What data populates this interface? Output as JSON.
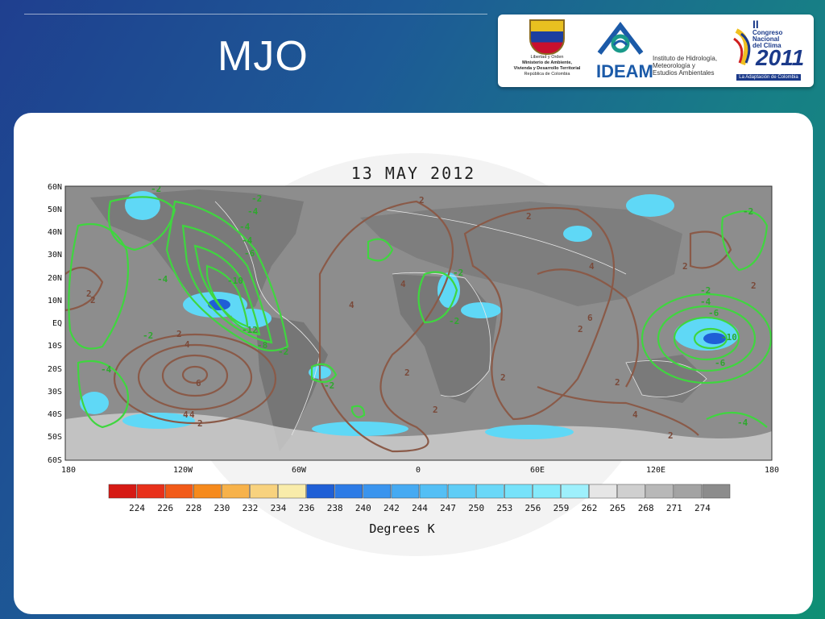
{
  "slide": {
    "title": "MJO"
  },
  "logos": {
    "ministry": {
      "lines": [
        "Libertad y Orden",
        "Ministerio de Ambiente,",
        "Vivienda y Desarrollo Territorial",
        "República de Colombia"
      ]
    },
    "ideam": {
      "acronym": "IDEAM",
      "lines": [
        "Instituto de Hidrología,",
        "Meteorología y",
        "Estudios Ambientales"
      ]
    },
    "congreso": {
      "roman": "II",
      "lines": [
        "Congreso",
        "Nacional",
        "del Clima"
      ],
      "year": "2011",
      "tagline": "La Adaptación de Colombia"
    }
  },
  "map": {
    "date_title": "13 MAY 2012",
    "lat_labels": [
      "60N",
      "50N",
      "40N",
      "30N",
      "20N",
      "10N",
      "EQ",
      "10S",
      "20S",
      "30S",
      "40S",
      "50S",
      "60S"
    ],
    "lon_labels": [
      "180",
      "120W",
      "60W",
      "0",
      "60E",
      "120E",
      "180"
    ],
    "colorbar_values": [
      "224",
      "226",
      "228",
      "230",
      "232",
      "234",
      "236",
      "238",
      "240",
      "242",
      "244",
      "247",
      "250",
      "253",
      "256",
      "259",
      "262",
      "265",
      "268",
      "271",
      "274"
    ],
    "colorbar_colors": [
      "#d61a14",
      "#e8301a",
      "#f25a18",
      "#f68a1c",
      "#f7b24a",
      "#f8d27e",
      "#f9ecaa",
      "#1f5fd6",
      "#2c7be6",
      "#3a94ee",
      "#46aaf2",
      "#54bff5",
      "#5fcdf6",
      "#6ad8f8",
      "#76e2fa",
      "#84eafb",
      "#9ef0fc",
      "#e6e6e6",
      "#cfcfcf",
      "#b8b8b8",
      "#a3a3a3",
      "#8c8c8c"
    ],
    "units_label": "Degrees K",
    "contour_labels": {
      "green": [
        "-2",
        "-4",
        "-4",
        "-10",
        "-12",
        "-4",
        "-6",
        "-8",
        "-2",
        "-2",
        "-2",
        "-2",
        "-4",
        "-2",
        "-2",
        "-4",
        "-6",
        "-10",
        "-6",
        "-4",
        "-2",
        "-2",
        "-4"
      ],
      "brown": [
        "2",
        "2",
        "4",
        "6",
        "2",
        "4",
        "2",
        "4",
        "2",
        "2",
        "4",
        "2",
        "2",
        "2",
        "4",
        "6",
        "2",
        "4",
        "2",
        "2",
        "4",
        "2",
        "2"
      ]
    },
    "colors": {
      "olr_green": "#3fd63f",
      "olr_brown": "#8a5a48",
      "land_gray": "#7b7b7b",
      "cloud_cyan": "#5fd8f6"
    }
  }
}
